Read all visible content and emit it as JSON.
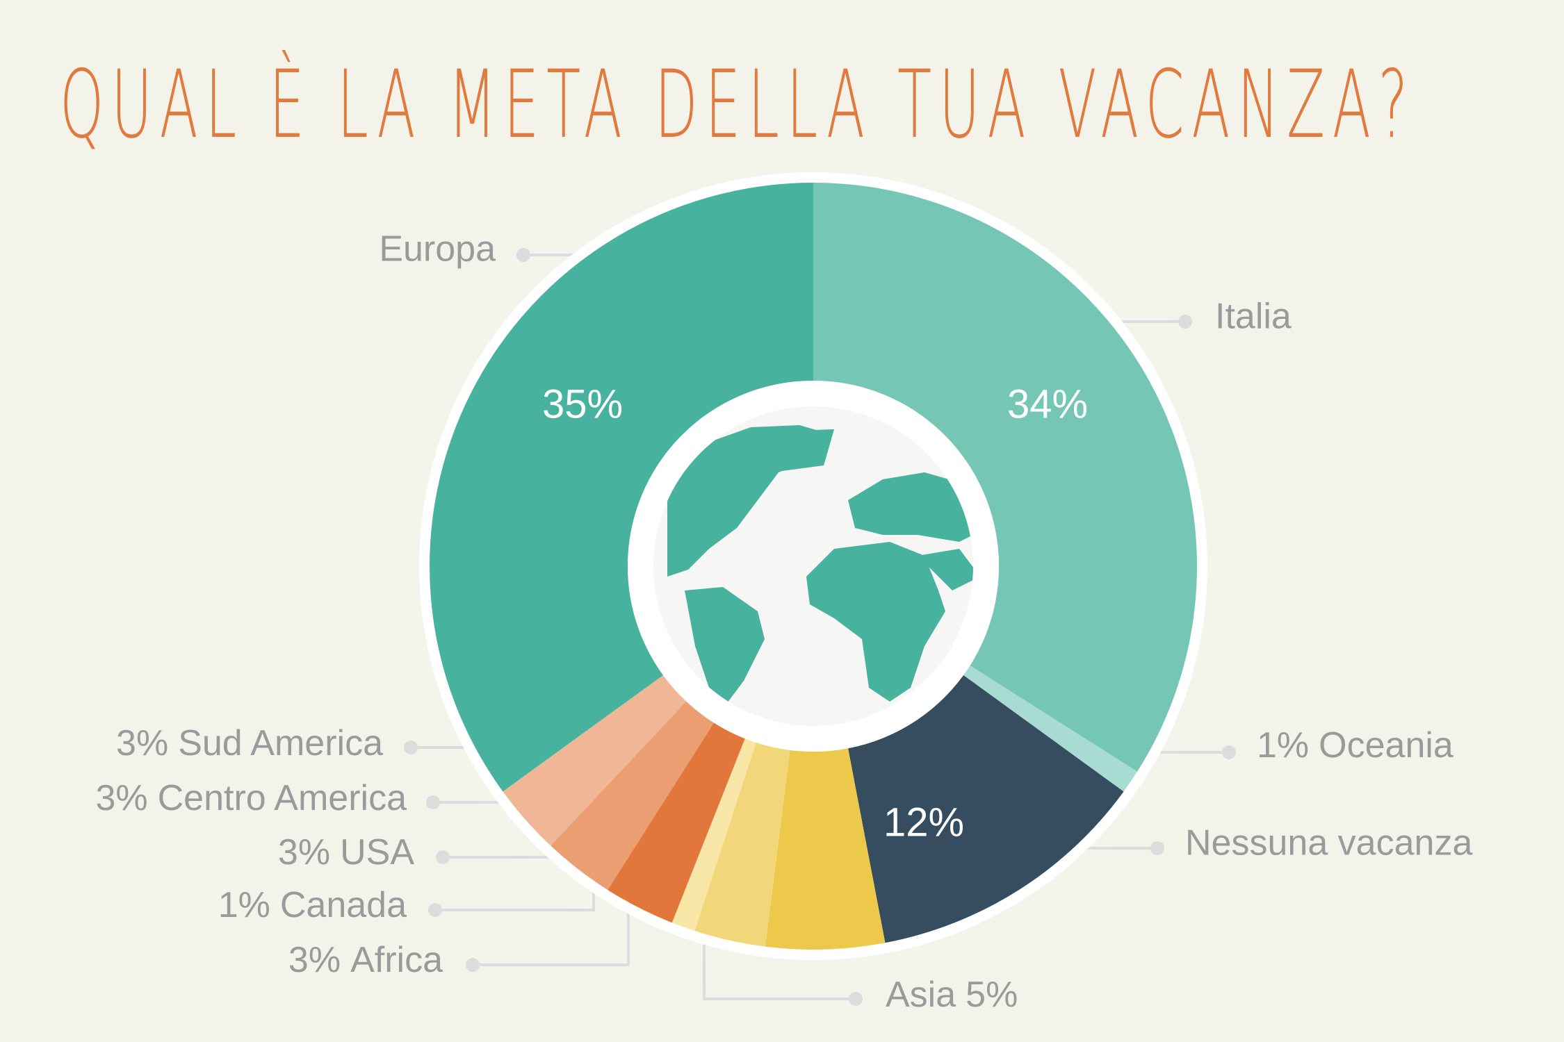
{
  "chart_data": {
    "type": "donut",
    "title": "QUAL È LA META DELLA TUA VACANZA?",
    "categories": [
      "Italia",
      "Oceania",
      "Nessuna vacanza",
      "Asia",
      "Africa",
      "Canada",
      "USA",
      "Centro America",
      "Sud America",
      "Europa"
    ],
    "values": [
      34,
      1,
      12,
      5,
      3,
      1,
      3,
      3,
      3,
      35
    ],
    "value_labels": [
      "34%",
      "1%",
      "12%",
      "5%",
      "3%",
      "1%",
      "3%",
      "3%",
      "3%",
      "35%"
    ],
    "colors": [
      "#76c6b6",
      "#a8dbd1",
      "#354d5e",
      "#ecc84b",
      "#f2d77a",
      "#f7e6a6",
      "#e2773c",
      "#eb9e72",
      "#efb795",
      "#47b29e"
    ]
  }
}
